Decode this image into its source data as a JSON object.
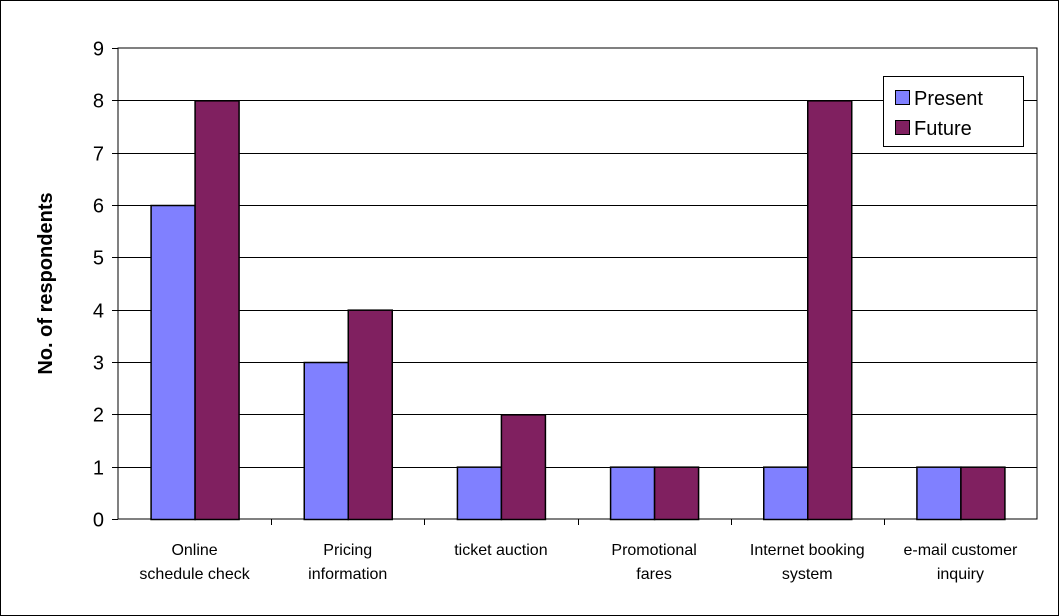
{
  "chart_data": {
    "type": "bar",
    "title": "",
    "xlabel": "",
    "ylabel": "No. of respondents",
    "ylim": [
      0,
      9
    ],
    "yticks": [
      0,
      1,
      2,
      3,
      4,
      5,
      6,
      7,
      8,
      9
    ],
    "grid": "horizontal",
    "legend_position": "top-right",
    "categories": [
      [
        "Online",
        "schedule check"
      ],
      [
        "Pricing",
        "information"
      ],
      [
        "ticket auction"
      ],
      [
        "Promotional",
        "fares"
      ],
      [
        "Internet booking",
        "system"
      ],
      [
        "e-mail customer",
        "inquiry"
      ]
    ],
    "series": [
      {
        "name": "Present",
        "color": "#8080ff",
        "values": [
          6,
          3,
          1,
          1,
          1,
          1
        ]
      },
      {
        "name": "Future",
        "color": "#802060",
        "values": [
          8,
          4,
          2,
          1,
          8,
          1
        ]
      }
    ]
  }
}
